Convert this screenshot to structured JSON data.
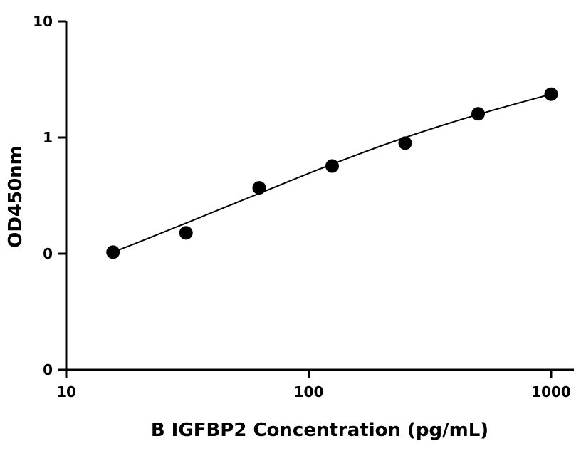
{
  "chart_data": {
    "type": "scatter",
    "xscale": "log",
    "yscale": "log",
    "xlabel": "B IGFBP2 Concentration (pg/mL)",
    "ylabel": "OD450nm",
    "xlim": [
      10,
      1200
    ],
    "ylim": [
      0.01,
      10
    ],
    "x_ticks": [
      {
        "value": 10,
        "label": "10"
      },
      {
        "value": 100,
        "label": "100"
      },
      {
        "value": 1000,
        "label": "1000"
      }
    ],
    "y_ticks": [
      {
        "value": 0.01,
        "label": "0"
      },
      {
        "value": 0.1,
        "label": "0"
      },
      {
        "value": 1,
        "label": "1"
      },
      {
        "value": 10,
        "label": "10"
      }
    ],
    "series": [
      {
        "marker": "circle",
        "color": "#000000",
        "x": [
          15.6,
          31.2,
          62.5,
          125,
          250,
          500,
          1000
        ],
        "y": [
          0.103,
          0.151,
          0.369,
          0.568,
          0.895,
          1.6,
          2.36
        ]
      }
    ],
    "fit_curve": {
      "color": "#000000",
      "x": [
        15.6,
        20,
        31.2,
        62.5,
        125,
        250,
        500,
        1000
      ],
      "y": [
        0.103,
        0.126,
        0.183,
        0.33,
        0.59,
        1.0,
        1.58,
        2.36
      ]
    },
    "grid": false,
    "legend": "none"
  }
}
